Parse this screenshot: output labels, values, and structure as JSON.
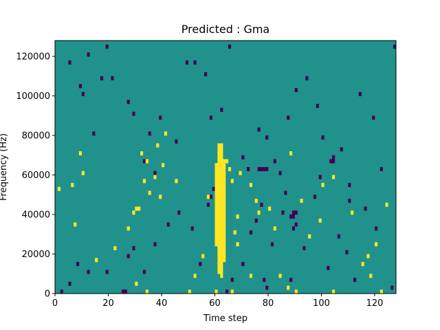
{
  "chart_data": {
    "type": "heatmap",
    "title": "Predicted : Gma",
    "xlabel": "Time step",
    "ylabel": "Frequency (Hz)",
    "xlim": [
      0,
      128
    ],
    "ylim": [
      0,
      128000
    ],
    "xticks": [
      0,
      20,
      40,
      60,
      80,
      100,
      120
    ],
    "yticks": [
      0,
      20000,
      40000,
      60000,
      80000,
      100000,
      120000
    ],
    "xtick_labels": [
      "0",
      "20",
      "40",
      "60",
      "80",
      "100",
      "120"
    ],
    "ytick_labels": [
      "0",
      "20000",
      "40000",
      "60000",
      "80000",
      "100000",
      "120000"
    ],
    "grid": false,
    "colormap": "viridis",
    "value_range": [
      -1,
      1
    ],
    "background_value": 0,
    "colors": {
      "low": "#440154",
      "mid": "#21918c",
      "high": "#fde725"
    },
    "n_rows": 64,
    "cells_high": [
      [
        1,
        26
      ],
      [
        6,
        27
      ],
      [
        7,
        17
      ],
      [
        9,
        35
      ],
      [
        29,
        20
      ],
      [
        30,
        21
      ],
      [
        31,
        21
      ],
      [
        32,
        35
      ],
      [
        33,
        28
      ],
      [
        34,
        33
      ],
      [
        35,
        25
      ],
      [
        37,
        29
      ],
      [
        38,
        37
      ],
      [
        39,
        24
      ],
      [
        40,
        32
      ],
      [
        41,
        40
      ],
      [
        60,
        12
      ],
      [
        60,
        13
      ],
      [
        60,
        14
      ],
      [
        60,
        15
      ],
      [
        60,
        16
      ],
      [
        60,
        17
      ],
      [
        60,
        18
      ],
      [
        60,
        19
      ],
      [
        60,
        20
      ],
      [
        60,
        21
      ],
      [
        60,
        22
      ],
      [
        60,
        23
      ],
      [
        60,
        24
      ],
      [
        60,
        25
      ],
      [
        60,
        26
      ],
      [
        60,
        27
      ],
      [
        60,
        28
      ],
      [
        60,
        29
      ],
      [
        60,
        30
      ],
      [
        60,
        31
      ],
      [
        60,
        32
      ],
      [
        61,
        5
      ],
      [
        61,
        6
      ],
      [
        61,
        7
      ],
      [
        61,
        8
      ],
      [
        61,
        9
      ],
      [
        61,
        10
      ],
      [
        61,
        11
      ],
      [
        61,
        12
      ],
      [
        61,
        13
      ],
      [
        61,
        14
      ],
      [
        61,
        15
      ],
      [
        61,
        16
      ],
      [
        61,
        17
      ],
      [
        61,
        18
      ],
      [
        61,
        19
      ],
      [
        61,
        20
      ],
      [
        61,
        21
      ],
      [
        61,
        22
      ],
      [
        61,
        23
      ],
      [
        61,
        24
      ],
      [
        61,
        25
      ],
      [
        61,
        26
      ],
      [
        61,
        27
      ],
      [
        61,
        28
      ],
      [
        61,
        29
      ],
      [
        61,
        30
      ],
      [
        61,
        31
      ],
      [
        61,
        32
      ],
      [
        61,
        33
      ],
      [
        61,
        34
      ],
      [
        61,
        35
      ],
      [
        61,
        36
      ],
      [
        61,
        37
      ],
      [
        62,
        4
      ],
      [
        62,
        5
      ],
      [
        62,
        6
      ],
      [
        62,
        7
      ],
      [
        62,
        8
      ],
      [
        62,
        9
      ],
      [
        62,
        10
      ],
      [
        62,
        11
      ],
      [
        62,
        12
      ],
      [
        62,
        13
      ],
      [
        62,
        14
      ],
      [
        62,
        15
      ],
      [
        62,
        16
      ],
      [
        62,
        17
      ],
      [
        62,
        18
      ],
      [
        62,
        19
      ],
      [
        62,
        20
      ],
      [
        62,
        21
      ],
      [
        62,
        22
      ],
      [
        62,
        23
      ],
      [
        62,
        24
      ],
      [
        62,
        25
      ],
      [
        62,
        26
      ],
      [
        62,
        27
      ],
      [
        62,
        28
      ],
      [
        62,
        29
      ],
      [
        62,
        30
      ],
      [
        62,
        31
      ],
      [
        62,
        32
      ],
      [
        62,
        33
      ],
      [
        62,
        34
      ],
      [
        62,
        35
      ],
      [
        62,
        36
      ],
      [
        62,
        37
      ],
      [
        63,
        8
      ],
      [
        63,
        9
      ],
      [
        63,
        10
      ],
      [
        63,
        11
      ],
      [
        63,
        12
      ],
      [
        63,
        13
      ],
      [
        63,
        14
      ],
      [
        63,
        15
      ],
      [
        63,
        16
      ],
      [
        63,
        17
      ],
      [
        63,
        18
      ],
      [
        63,
        19
      ],
      [
        63,
        20
      ],
      [
        63,
        21
      ],
      [
        63,
        22
      ],
      [
        63,
        23
      ],
      [
        63,
        24
      ],
      [
        63,
        25
      ],
      [
        63,
        26
      ],
      [
        63,
        27
      ],
      [
        63,
        28
      ],
      [
        63,
        29
      ],
      [
        63,
        30
      ],
      [
        63,
        31
      ],
      [
        63,
        32
      ],
      [
        63,
        33
      ],
      [
        64,
        33
      ],
      [
        65,
        31
      ],
      [
        66,
        28
      ],
      [
        67,
        15
      ],
      [
        68,
        12
      ],
      [
        69,
        30
      ],
      [
        73,
        27
      ],
      [
        75,
        23
      ],
      [
        76,
        20
      ],
      [
        80,
        21
      ],
      [
        82,
        16
      ],
      [
        88,
        35
      ],
      [
        92,
        23
      ],
      [
        95,
        14
      ],
      [
        99,
        18
      ],
      [
        104,
        29
      ],
      [
        111,
        20
      ],
      [
        115,
        7
      ],
      [
        117,
        9
      ],
      [
        120,
        12
      ],
      [
        124,
        22
      ],
      [
        10,
        30
      ],
      [
        15,
        8
      ],
      [
        22,
        11
      ],
      [
        27,
        16
      ],
      [
        30,
        2
      ],
      [
        45,
        28
      ],
      [
        52,
        4
      ],
      [
        55,
        9
      ],
      [
        57,
        24
      ],
      [
        68,
        19
      ],
      [
        73,
        4
      ],
      [
        84,
        4
      ],
      [
        87,
        1
      ],
      [
        100,
        27
      ],
      [
        118,
        4
      ],
      [
        34,
        0
      ],
      [
        50,
        0
      ],
      [
        60,
        0
      ],
      [
        66,
        0
      ],
      [
        90,
        0
      ],
      [
        104,
        0
      ],
      [
        122,
        0
      ]
    ],
    "cells_low": [
      [
        2,
        0
      ],
      [
        5,
        2
      ],
      [
        8,
        7
      ],
      [
        12,
        5
      ],
      [
        19,
        5
      ],
      [
        25,
        0
      ],
      [
        26,
        0
      ],
      [
        27,
        9
      ],
      [
        29,
        11
      ],
      [
        33,
        5
      ],
      [
        37,
        12
      ],
      [
        42,
        17
      ],
      [
        46,
        20
      ],
      [
        51,
        16
      ],
      [
        54,
        7
      ],
      [
        57,
        22
      ],
      [
        58,
        24
      ],
      [
        59,
        26
      ],
      [
        64,
        0
      ],
      [
        66,
        3
      ],
      [
        70,
        7
      ],
      [
        73,
        15
      ],
      [
        75,
        18
      ],
      [
        77,
        22
      ],
      [
        78,
        3
      ],
      [
        79,
        1
      ],
      [
        81,
        12
      ],
      [
        85,
        20
      ],
      [
        86,
        25
      ],
      [
        88,
        3
      ],
      [
        89,
        16
      ],
      [
        90,
        17
      ],
      [
        93,
        11
      ],
      [
        97,
        24
      ],
      [
        99,
        29
      ],
      [
        102,
        6
      ],
      [
        104,
        34
      ],
      [
        106,
        14
      ],
      [
        109,
        10
      ],
      [
        110,
        23
      ],
      [
        112,
        3
      ],
      [
        116,
        21
      ],
      [
        120,
        16
      ],
      [
        126,
        1
      ],
      [
        5,
        58
      ],
      [
        9,
        52
      ],
      [
        10,
        50
      ],
      [
        12,
        60
      ],
      [
        14,
        40
      ],
      [
        17,
        54
      ],
      [
        19,
        62
      ],
      [
        21,
        54
      ],
      [
        27,
        48
      ],
      [
        29,
        45
      ],
      [
        33,
        33
      ],
      [
        35,
        40
      ],
      [
        37,
        30
      ],
      [
        39,
        44
      ],
      [
        45,
        38
      ],
      [
        49,
        58
      ],
      [
        52,
        58
      ],
      [
        56,
        55
      ],
      [
        58,
        44
      ],
      [
        62,
        46
      ],
      [
        65,
        62
      ],
      [
        70,
        34
      ],
      [
        72,
        31
      ],
      [
        76,
        41
      ],
      [
        79,
        39
      ],
      [
        82,
        33
      ],
      [
        84,
        30
      ],
      [
        87,
        44
      ],
      [
        90,
        51
      ],
      [
        94,
        54
      ],
      [
        98,
        47
      ],
      [
        100,
        39
      ],
      [
        107,
        36
      ],
      [
        110,
        27
      ],
      [
        114,
        50
      ],
      [
        119,
        44
      ],
      [
        122,
        31
      ],
      [
        127,
        62
      ],
      [
        88,
        19
      ],
      [
        89,
        19
      ],
      [
        89,
        20
      ],
      [
        90,
        20
      ],
      [
        76,
        31
      ],
      [
        77,
        31
      ],
      [
        78,
        31
      ],
      [
        79,
        31
      ],
      [
        103,
        33
      ],
      [
        104,
        33
      ]
    ]
  }
}
